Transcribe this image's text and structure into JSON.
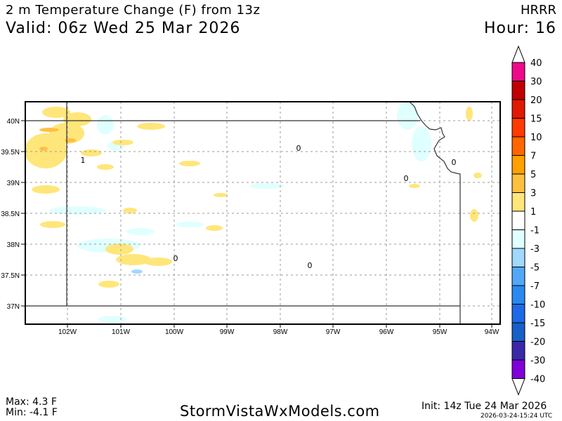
{
  "header": {
    "title": "2 m Temperature Change (F) from 13z",
    "valid": "Valid: 06z Wed 25 Mar 2026",
    "model": "HRRR",
    "hour": "Hour: 16"
  },
  "map": {
    "lat_labels": [
      "40N",
      "39.5N",
      "39N",
      "38.5N",
      "38N",
      "37.5N",
      "37N"
    ],
    "lon_labels": [
      "102W",
      "101W",
      "100W",
      "99W",
      "98W",
      "97W",
      "96W",
      "95W",
      "94W"
    ],
    "contour_labels": [
      "1",
      "0",
      "0",
      "0",
      "0",
      "0"
    ]
  },
  "colorbar": {
    "labels": [
      "40",
      "30",
      "20",
      "15",
      "10",
      "7",
      "5",
      "3",
      "1",
      "-1",
      "-3",
      "-5",
      "-7",
      "-10",
      "-15",
      "-20",
      "-30",
      "-40"
    ],
    "colors": [
      "#ee0a8a",
      "#c00000",
      "#e01a00",
      "#ff3a00",
      "#ff6600",
      "#ffa000",
      "#ffc040",
      "#ffe67a",
      "#ffffff",
      "#e0ffff",
      "#a0d8ff",
      "#52a8f8",
      "#2a88f0",
      "#1e6ae6",
      "#1660c8",
      "#3a28a8",
      "#8000d8"
    ]
  },
  "footer": {
    "max": "Max: 4.3 F",
    "min": "Min: -4.1 F",
    "site": "StormVistaWxModels.com",
    "init": "Init: 14z Tue 24 Mar 2026",
    "stamp": "2026-03-24-15:24 UTC"
  }
}
